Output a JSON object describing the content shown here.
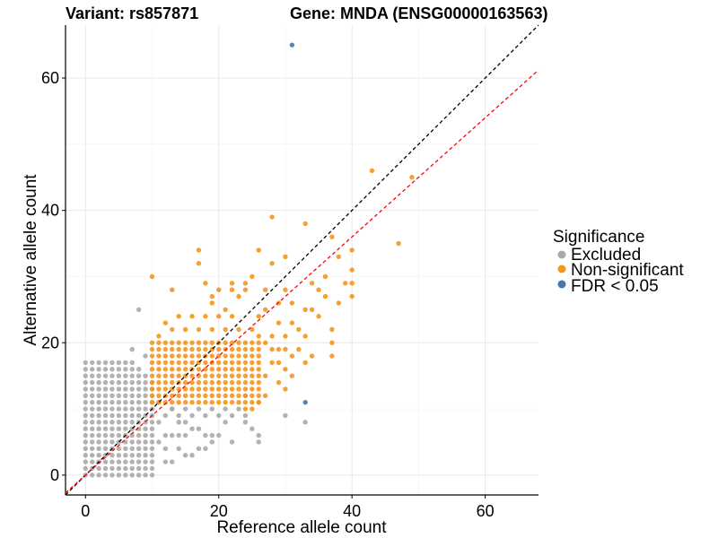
{
  "chart_data": {
    "type": "scatter",
    "title_left": "Variant: rs857871",
    "title_right": "Gene: MNDA (ENSG00000163563)",
    "xlabel": "Reference allele count",
    "ylabel": "Alternative allele count",
    "xlim": [
      -3,
      68
    ],
    "ylim": [
      -3,
      68
    ],
    "x_ticks": [
      0,
      20,
      40,
      60
    ],
    "y_ticks": [
      0,
      20,
      40,
      60
    ],
    "grid": true,
    "reference_lines": [
      {
        "name": "y = x",
        "slope": 1.0,
        "intercept": 0,
        "color": "#000000",
        "style": "dashed"
      },
      {
        "name": "fitted ratio",
        "slope": 0.9,
        "intercept": 0,
        "color": "#ff0000",
        "style": "dashed"
      }
    ],
    "legend": {
      "title": "Significance",
      "placement": "right",
      "entries": [
        {
          "label": "Excluded",
          "color": "#aaaaaa"
        },
        {
          "label": "Non-significant",
          "color": "#f5961e"
        },
        {
          "label": "FDR < 0.05",
          "color": "#4a76a8"
        }
      ]
    },
    "series": [
      {
        "name": "Excluded",
        "color": "#aaaaaa",
        "region": {
          "x": [
            0,
            10
          ],
          "y": [
            0,
            17
          ]
        },
        "points": [
          [
            8,
            25
          ],
          [
            7,
            19
          ],
          [
            9,
            18
          ],
          [
            11,
            11
          ],
          [
            13,
            10
          ],
          [
            14,
            9
          ],
          [
            15,
            8
          ],
          [
            16,
            7
          ],
          [
            17,
            7
          ],
          [
            18,
            6
          ],
          [
            19,
            6
          ],
          [
            20,
            6
          ],
          [
            21,
            8
          ],
          [
            22,
            5
          ],
          [
            19,
            5
          ],
          [
            17,
            4
          ],
          [
            18,
            4
          ],
          [
            16,
            3
          ],
          [
            15,
            3
          ],
          [
            12,
            2
          ],
          [
            13,
            2
          ],
          [
            24,
            8
          ],
          [
            24,
            9
          ],
          [
            26,
            6
          ],
          [
            26,
            5
          ],
          [
            25,
            7
          ],
          [
            30,
            9
          ],
          [
            33,
            8
          ],
          [
            12,
            9
          ],
          [
            14,
            8
          ],
          [
            16,
            9
          ],
          [
            18,
            9
          ],
          [
            20,
            9
          ],
          [
            22,
            9
          ],
          [
            23,
            10
          ],
          [
            21,
            10
          ],
          [
            19,
            10
          ],
          [
            17,
            10
          ],
          [
            15,
            10
          ],
          [
            13,
            10
          ],
          [
            11,
            8
          ],
          [
            12,
            6
          ],
          [
            13,
            6
          ],
          [
            14,
            6
          ],
          [
            15,
            6
          ],
          [
            11,
            5
          ],
          [
            12,
            4
          ],
          [
            14,
            4
          ]
        ]
      },
      {
        "name": "Non-significant",
        "color": "#f5961e",
        "region": {
          "x": [
            10,
            26
          ],
          "y": [
            11,
            20
          ]
        },
        "points": [
          [
            43,
            46
          ],
          [
            49,
            45
          ],
          [
            28,
            39
          ],
          [
            33,
            38
          ],
          [
            47,
            35
          ],
          [
            37,
            36
          ],
          [
            17,
            34
          ],
          [
            26,
            34
          ],
          [
            17,
            32
          ],
          [
            28,
            32
          ],
          [
            38,
            33
          ],
          [
            40,
            34
          ],
          [
            30,
            33
          ],
          [
            36,
            30
          ],
          [
            40,
            31
          ],
          [
            10,
            30
          ],
          [
            39,
            29
          ],
          [
            40,
            27
          ],
          [
            40,
            29
          ],
          [
            13,
            28
          ],
          [
            20,
            28
          ],
          [
            22,
            28
          ],
          [
            24,
            28
          ],
          [
            19,
            27
          ],
          [
            23,
            27
          ],
          [
            30,
            28
          ],
          [
            31,
            26
          ],
          [
            35,
            28
          ],
          [
            38,
            26
          ],
          [
            34,
            25
          ],
          [
            36,
            27
          ],
          [
            34,
            29
          ],
          [
            25,
            30
          ],
          [
            24,
            29
          ],
          [
            22,
            29
          ],
          [
            18,
            29
          ],
          [
            32,
            22
          ],
          [
            33,
            21
          ],
          [
            37,
            20
          ],
          [
            37,
            18
          ],
          [
            35,
            24
          ],
          [
            37,
            22
          ],
          [
            31,
            23
          ],
          [
            33,
            25
          ],
          [
            29,
            23
          ],
          [
            30,
            21
          ],
          [
            32,
            19
          ],
          [
            28,
            21
          ],
          [
            28,
            17
          ],
          [
            29,
            17
          ],
          [
            30,
            16
          ],
          [
            31,
            15
          ],
          [
            30,
            13
          ],
          [
            29,
            14
          ],
          [
            27,
            15
          ],
          [
            27,
            12
          ],
          [
            26,
            11
          ],
          [
            25,
            10
          ],
          [
            24,
            12
          ],
          [
            24,
            10
          ],
          [
            13,
            22
          ],
          [
            15,
            22
          ],
          [
            17,
            22
          ],
          [
            19,
            22
          ],
          [
            21,
            22
          ],
          [
            23,
            22
          ],
          [
            25,
            22
          ],
          [
            26,
            24
          ],
          [
            27,
            25
          ],
          [
            22,
            24
          ],
          [
            20,
            24
          ],
          [
            18,
            24
          ],
          [
            16,
            24
          ],
          [
            14,
            24
          ],
          [
            21,
            25
          ],
          [
            19,
            26
          ],
          [
            27,
            28
          ],
          [
            29,
            26
          ],
          [
            11,
            21
          ],
          [
            12,
            23
          ],
          [
            26,
            21
          ],
          [
            27,
            20
          ],
          [
            28,
            19
          ],
          [
            29,
            19
          ],
          [
            31,
            18
          ],
          [
            30,
            19
          ],
          [
            33,
            17
          ],
          [
            34,
            18
          ]
        ]
      },
      {
        "name": "FDR < 0.05",
        "color": "#4a76a8",
        "points": [
          [
            31,
            65
          ],
          [
            33,
            11
          ]
        ]
      }
    ]
  }
}
